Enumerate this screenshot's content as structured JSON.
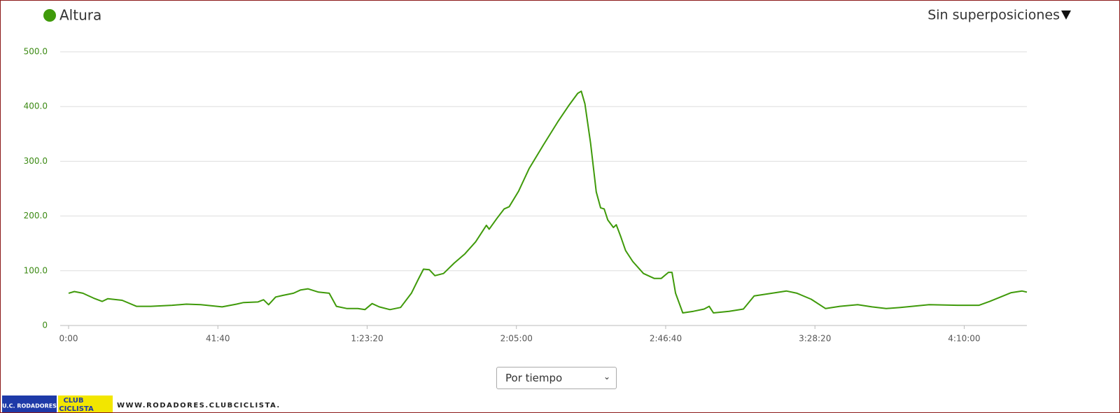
{
  "chart_data": {
    "type": "line",
    "legend": "Altura",
    "x": [
      0,
      96,
      239,
      418,
      562,
      658,
      897,
      1136,
      1375,
      1734,
      1973,
      2213,
      2571,
      2811,
      2930,
      3169,
      3265,
      3349,
      3468,
      3588,
      3767,
      3887,
      4007,
      4186,
      4365,
      4485,
      4664,
      4844,
      4963,
      5083,
      5203,
      5382,
      5561,
      5741,
      5860,
      5944,
      6040,
      6135,
      6279,
      6458,
      6638,
      6817,
      6997,
      7044,
      7176,
      7296,
      7379,
      7535,
      7714,
      7953,
      8193,
      8372,
      8527,
      8587,
      8647,
      8743,
      8838,
      8910,
      8970,
      9030,
      9125,
      9173,
      9245,
      9329,
      9448,
      9628,
      9807,
      9927,
      10046,
      10106,
      10166,
      10286,
      10465,
      10644,
      10728,
      10800,
      11063,
      11302,
      11482,
      11781,
      12020,
      12199,
      12438,
      12678,
      12917,
      13216,
      13455,
      13694,
      13933,
      14412,
      14890,
      15249,
      15428,
      15608,
      15787,
      15967,
      16050
    ],
    "series": [
      {
        "name": "Altura",
        "color": "#3f9a0a",
        "values": [
          59,
          62,
          59,
          50,
          44,
          49,
          46,
          35,
          35,
          37,
          39,
          38,
          34,
          39,
          42,
          43,
          47,
          38,
          52,
          55,
          59,
          65,
          67,
          61,
          59,
          35,
          31,
          31,
          29,
          40,
          34,
          29,
          33,
          59,
          85,
          103,
          102,
          91,
          95,
          114,
          131,
          153,
          183,
          176,
          196,
          213,
          217,
          245,
          287,
          330,
          372,
          401,
          424,
          428,
          405,
          333,
          244,
          215,
          213,
          193,
          179,
          184,
          163,
          137,
          117,
          95,
          86,
          86,
          97,
          97,
          59,
          23,
          26,
          30,
          35,
          23,
          26,
          30,
          54,
          59,
          63,
          59,
          48,
          31,
          35,
          38,
          34,
          31,
          33,
          38,
          37,
          37,
          44,
          52,
          60,
          63,
          61
        ]
      }
    ],
    "xlim": [
      0,
      16050
    ],
    "xticks": [
      {
        "value": 0,
        "label": "0:00"
      },
      {
        "value": 2500,
        "label": "41:40"
      },
      {
        "value": 5000,
        "label": "1:23:20"
      },
      {
        "value": 7500,
        "label": "2:05:00"
      },
      {
        "value": 10000,
        "label": "2:46:40"
      },
      {
        "value": 12500,
        "label": "3:28:20"
      },
      {
        "value": 15000,
        "label": "4:10:00"
      }
    ],
    "ylim": [
      0,
      500
    ],
    "yticks": [
      0,
      {
        "value": 100,
        "label": "100.0"
      },
      {
        "value": 200,
        "label": "200.0"
      },
      {
        "value": 300,
        "label": "300.0"
      },
      {
        "value": 400,
        "label": "400.0"
      },
      {
        "value": 500,
        "label": "500.0"
      }
    ],
    "grid": true
  },
  "overlay_menu": "Sin superposiciones",
  "select": "Por tiempo",
  "watermark": {
    "club": "U.C. RODADORES",
    "badge_top": "CLUB",
    "badge_bottom": "CICLISTA",
    "url": "WWW.RODADORES.CLUBCICLISTA.INFO"
  }
}
